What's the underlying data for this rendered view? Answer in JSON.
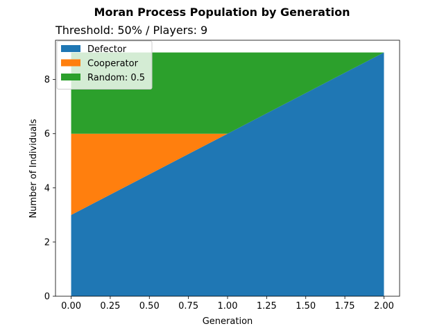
{
  "chart_data": {
    "type": "area",
    "stacked": true,
    "title": "Moran Process Population by Generation",
    "subtitle": "Threshold: 50% / Players: 9",
    "xlabel": "Generation",
    "ylabel": "Number of Individuals",
    "x": [
      0,
      1,
      2
    ],
    "xlim": [
      -0.1,
      2.1
    ],
    "ylim": [
      0,
      9.45
    ],
    "xticks": [
      0.0,
      0.25,
      0.5,
      0.75,
      1.0,
      1.25,
      1.5,
      1.75,
      2.0
    ],
    "xtick_labels": [
      "0.00",
      "0.25",
      "0.50",
      "0.75",
      "1.00",
      "1.25",
      "1.50",
      "1.75",
      "2.00"
    ],
    "yticks": [
      0,
      2,
      4,
      6,
      8
    ],
    "ytick_labels": [
      "0",
      "2",
      "4",
      "6",
      "8"
    ],
    "series": [
      {
        "name": "Defector",
        "values": [
          3,
          6,
          9
        ],
        "color": "#1f77b4"
      },
      {
        "name": "Cooperator",
        "values": [
          3,
          0,
          0
        ],
        "color": "#ff7f0e"
      },
      {
        "name": "Random: 0.5",
        "values": [
          3,
          3,
          0
        ],
        "color": "#2ca02c"
      }
    ],
    "legend": {
      "position": "top-left"
    },
    "grid": false
  }
}
